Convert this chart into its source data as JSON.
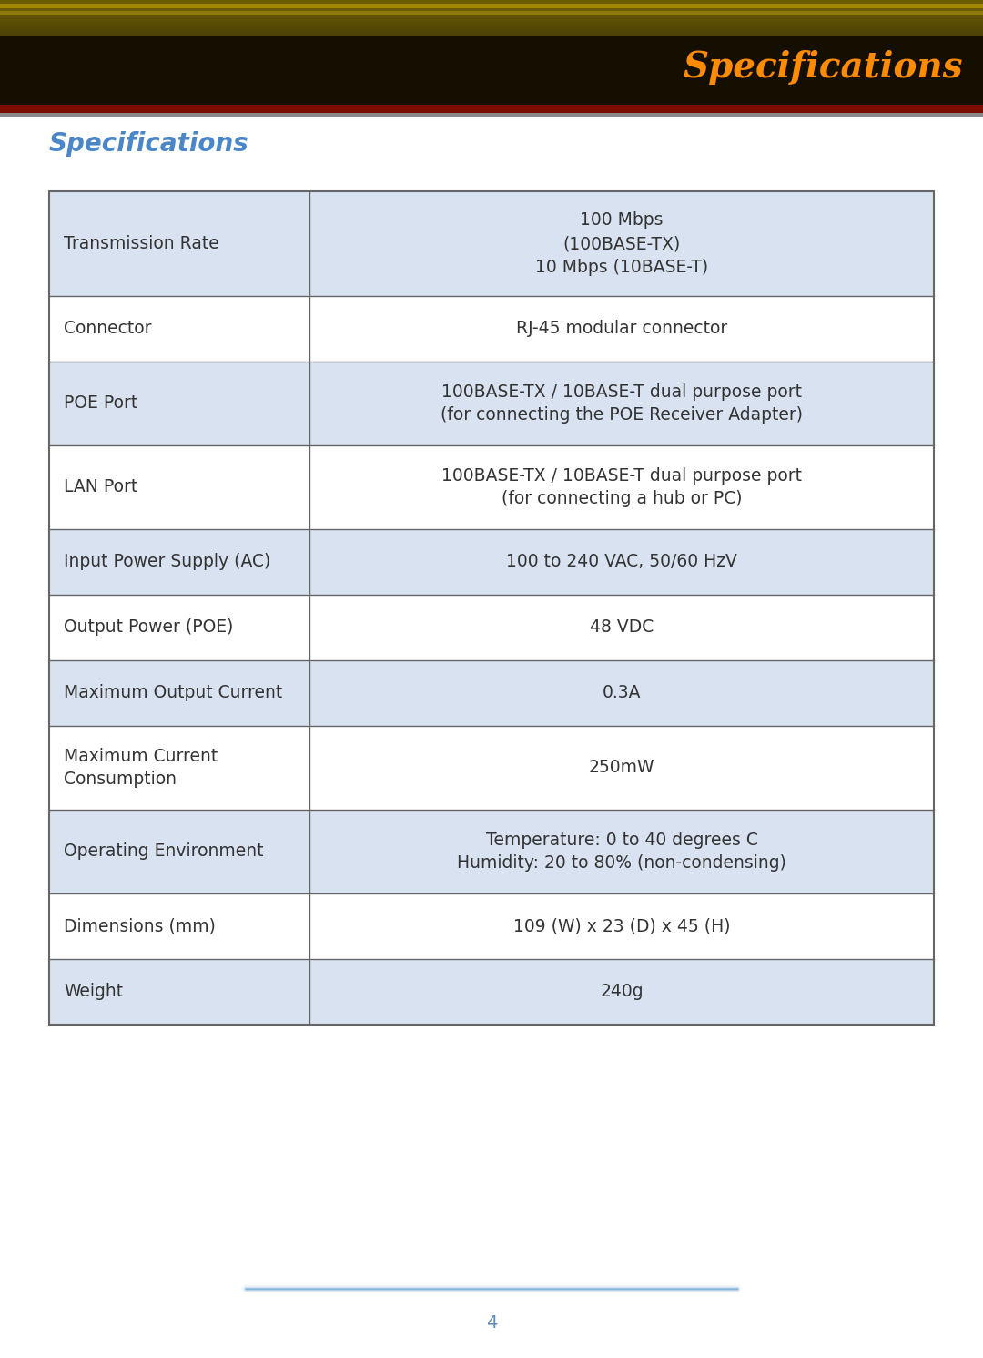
{
  "header_title": "Specifications",
  "section_title": "Specifications",
  "page_number": "4",
  "header_text_color": "#FF8C00",
  "section_title_color": "#4A86C8",
  "table_border_color": "#666666",
  "row_bg_light": "#d9e2f0",
  "row_bg_white": "#ffffff",
  "text_color": "#333333",
  "footer_line_color": "#7aaed6",
  "rows": [
    {
      "label": "Transmission Rate",
      "value": "100 Mbps\n(100BASE-TX)\n10 Mbps (10BASE-T)",
      "shaded": true
    },
    {
      "label": "Connector",
      "value": "RJ-45 modular connector",
      "shaded": false
    },
    {
      "label": "POE Port",
      "value": "100BASE-TX / 10BASE-T dual purpose port\n(for connecting the POE Receiver Adapter)",
      "shaded": true
    },
    {
      "label": "LAN Port",
      "value": "100BASE-TX / 10BASE-T dual purpose port\n(for connecting a hub or PC)",
      "shaded": false
    },
    {
      "label": "Input Power Supply (AC)",
      "value": "100 to 240 VAC, 50/60 HzV",
      "shaded": true
    },
    {
      "label": "Output Power (POE)",
      "value": "48 VDC",
      "shaded": false
    },
    {
      "label": "Maximum Output Current",
      "value": "0.3A",
      "shaded": true
    },
    {
      "label": "Maximum Current\nConsumption",
      "value": "250mW",
      "shaded": false
    },
    {
      "label": "Operating Environment",
      "value": "Temperature: 0 to 40 degrees C\nHumidity: 20 to 80% (non-condensing)",
      "shaded": true
    },
    {
      "label": "Dimensions (mm)",
      "value": "109 (W) x 23 (D) x 45 (H)",
      "shaded": false
    },
    {
      "label": "Weight",
      "value": "240g",
      "shaded": true
    }
  ],
  "figsize": [
    10.8,
    14.91
  ],
  "dpi": 100
}
